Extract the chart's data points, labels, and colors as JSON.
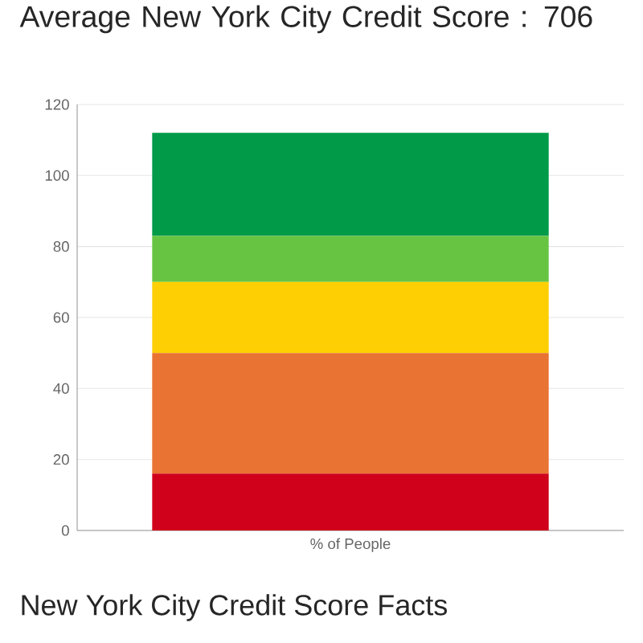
{
  "chart_data": {
    "type": "bar",
    "title": "Average New York City Credit Score : 706",
    "categories": [
      "% of People"
    ],
    "stacked": true,
    "grid": "y",
    "series": [
      {
        "color": "#d0011b",
        "values": [
          16
        ]
      },
      {
        "color": "#e97332",
        "values": [
          34
        ]
      },
      {
        "color": "#fecf02",
        "values": [
          20
        ]
      },
      {
        "color": "#67c443",
        "values": [
          13
        ]
      },
      {
        "color": "#019a48",
        "values": [
          29
        ]
      }
    ],
    "ylim": [
      0,
      120
    ],
    "yticks": [
      0,
      20,
      40,
      60,
      80,
      100,
      120
    ],
    "annotations": [
      "New York City Credit Score Facts"
    ]
  }
}
